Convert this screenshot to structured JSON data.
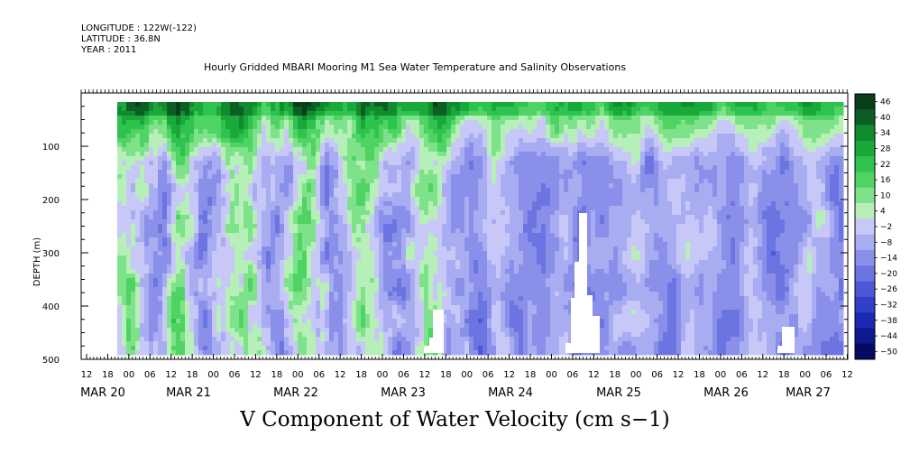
{
  "header": {
    "longitude": "LONGITUDE : 122W(-122)",
    "latitude": "LATITUDE : 36.8N",
    "year": "YEAR : 2011",
    "title": "Hourly Gridded MBARI Mooring M1 Sea Water Temperature and Salinity Observations"
  },
  "chart_data": {
    "type": "heatmap",
    "title": "V Component of Water Velocity (cm s−1)",
    "ylabel": "DEPTH (m)",
    "y_axis": {
      "ylim": [
        500,
        0
      ],
      "tick_values": [
        100,
        200,
        300,
        400,
        500
      ],
      "tick_labels": [
        "100",
        "200",
        "300",
        "400",
        "500"
      ],
      "inverted": true
    },
    "x_axis": {
      "hour_tick_labels": [
        "12",
        "18",
        "00",
        "06",
        "12",
        "18",
        "00",
        "06",
        "12",
        "18",
        "00",
        "06",
        "12",
        "18",
        "00",
        "06",
        "12",
        "18",
        "00",
        "06",
        "12",
        "18",
        "00",
        "06",
        "12",
        "18",
        "00",
        "06",
        "12",
        "18",
        "00",
        "06",
        "12",
        "18",
        "00",
        "06",
        "12"
      ],
      "date_labels": [
        "MAR 20",
        "MAR 21",
        "MAR 22",
        "MAR 23",
        "MAR 24",
        "MAR 25",
        "MAR 26",
        "MAR 27"
      ],
      "range": [
        "MAR 20 12:00",
        "MAR 27 12:00"
      ]
    },
    "colorbar": {
      "levels": [
        46,
        40,
        34,
        28,
        22,
        16,
        10,
        4,
        -2,
        -8,
        -14,
        -20,
        -26,
        -32,
        -38,
        -44,
        -50
      ],
      "colors": [
        "#0a3d1a",
        "#0d5e24",
        "#128a2e",
        "#1aa83a",
        "#2ec24e",
        "#4fd464",
        "#7ee28a",
        "#b6f0b8",
        "#c8c8f8",
        "#a8acf0",
        "#8a90ea",
        "#6c74e2",
        "#4c58d8",
        "#3040c8",
        "#1c28b0",
        "#0e1890",
        "#060a60"
      ]
    },
    "features": {
      "surface_band": "green (positive) values concentrated above ~120 m depth",
      "mask_regions": "white gaps near MAR 24/25 and MAR 27 at deep levels"
    }
  }
}
